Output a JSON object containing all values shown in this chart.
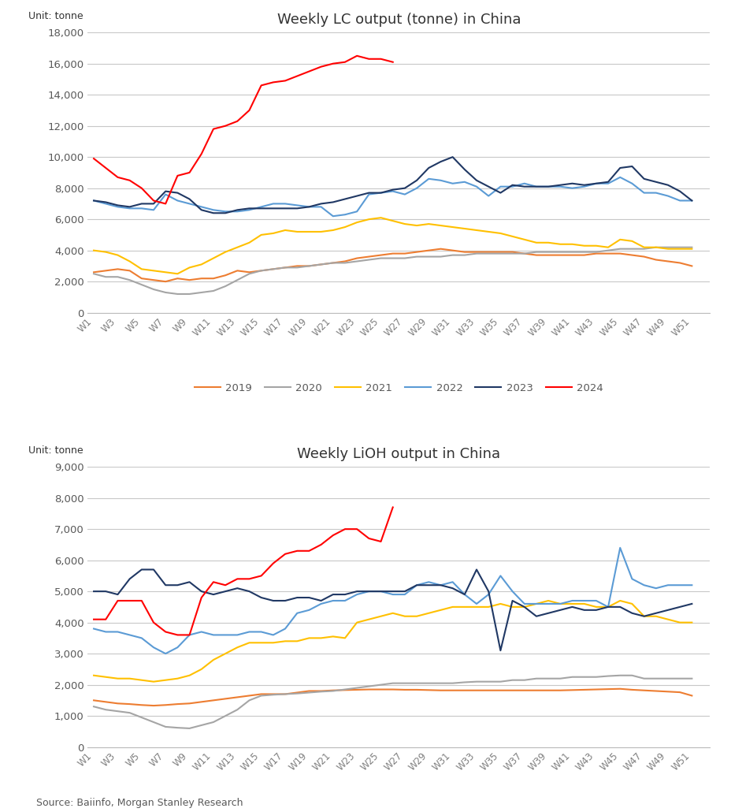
{
  "lc": {
    "title": "Weekly LC output (tonne) in China",
    "ylabel": "Unit: tonne",
    "ylim": [
      0,
      18000
    ],
    "yticks": [
      0,
      2000,
      4000,
      6000,
      8000,
      10000,
      12000,
      14000,
      16000,
      18000
    ],
    "series": {
      "2019": [
        2600,
        2700,
        2800,
        2700,
        2200,
        2100,
        2000,
        2200,
        2100,
        2200,
        2200,
        2400,
        2700,
        2600,
        2700,
        2800,
        2900,
        3000,
        3000,
        3100,
        3200,
        3300,
        3500,
        3600,
        3700,
        3800,
        3800,
        3900,
        4000,
        4100,
        4000,
        3900,
        3900,
        3900,
        3900,
        3900,
        3800,
        3700,
        3700,
        3700,
        3700,
        3700,
        3800,
        3800,
        3800,
        3700,
        3600,
        3400,
        3300,
        3200,
        3000,
        null
      ],
      "2020": [
        2500,
        2300,
        2300,
        2100,
        1800,
        1500,
        1300,
        1200,
        1200,
        1300,
        1400,
        1700,
        2100,
        2500,
        2700,
        2800,
        2900,
        2900,
        3000,
        3100,
        3200,
        3200,
        3300,
        3400,
        3500,
        3500,
        3500,
        3600,
        3600,
        3600,
        3700,
        3700,
        3800,
        3800,
        3800,
        3800,
        3800,
        3900,
        3900,
        3900,
        3900,
        3900,
        3900,
        4000,
        4100,
        4100,
        4100,
        4200,
        4200,
        4200,
        4200,
        null
      ],
      "2021": [
        4000,
        3900,
        3700,
        3300,
        2800,
        2700,
        2600,
        2500,
        2900,
        3100,
        3500,
        3900,
        4200,
        4500,
        5000,
        5100,
        5300,
        5200,
        5200,
        5200,
        5300,
        5500,
        5800,
        6000,
        6100,
        5900,
        5700,
        5600,
        5700,
        5600,
        5500,
        5400,
        5300,
        5200,
        5100,
        4900,
        4700,
        4500,
        4500,
        4400,
        4400,
        4300,
        4300,
        4200,
        4700,
        4600,
        4200,
        4200,
        4100,
        4100,
        4100,
        null
      ],
      "2022": [
        7200,
        7000,
        6800,
        6700,
        6700,
        6600,
        7600,
        7200,
        7000,
        6800,
        6600,
        6500,
        6500,
        6600,
        6800,
        7000,
        7000,
        6900,
        6800,
        6800,
        6200,
        6300,
        6500,
        7600,
        7700,
        7800,
        7600,
        8000,
        8600,
        8500,
        8300,
        8400,
        8100,
        7500,
        8100,
        8100,
        8300,
        8100,
        8100,
        8100,
        8000,
        8100,
        8300,
        8300,
        8700,
        8300,
        7700,
        7700,
        7500,
        7200,
        7200,
        null
      ],
      "2023": [
        7200,
        7100,
        6900,
        6800,
        7000,
        7000,
        7800,
        7700,
        7300,
        6600,
        6400,
        6400,
        6600,
        6700,
        6700,
        6700,
        6700,
        6700,
        6800,
        7000,
        7100,
        7300,
        7500,
        7700,
        7700,
        7900,
        8000,
        8500,
        9300,
        9700,
        10000,
        9200,
        8500,
        8100,
        7700,
        8200,
        8100,
        8100,
        8100,
        8200,
        8300,
        8200,
        8300,
        8400,
        9300,
        9400,
        8600,
        8400,
        8200,
        7800,
        7200,
        null
      ],
      "2024": [
        9900,
        9300,
        8700,
        8500,
        8000,
        7200,
        7000,
        8800,
        9000,
        10200,
        11800,
        12000,
        12300,
        13000,
        14600,
        14800,
        14900,
        15200,
        15500,
        15800,
        16000,
        16100,
        16500,
        16300,
        16300,
        16100,
        null,
        null,
        null,
        null,
        null,
        null,
        null,
        null,
        null,
        null,
        null,
        null,
        null,
        null,
        null,
        null,
        null,
        null,
        null,
        null,
        null,
        null,
        null,
        null,
        null,
        null
      ]
    },
    "colors": {
      "2019": "#ED7D31",
      "2020": "#A5A5A5",
      "2021": "#FFC000",
      "2022": "#5B9BD5",
      "2023": "#203864",
      "2024": "#FF0000"
    }
  },
  "lioh": {
    "title": "Weekly LiOH output in China",
    "ylabel": "Unit: tonne",
    "ylim": [
      0,
      9000
    ],
    "yticks": [
      0,
      1000,
      2000,
      3000,
      4000,
      5000,
      6000,
      7000,
      8000,
      9000
    ],
    "series": {
      "2019": [
        1500,
        1450,
        1400,
        1380,
        1350,
        1330,
        1350,
        1380,
        1400,
        1450,
        1500,
        1550,
        1600,
        1650,
        1700,
        1700,
        1700,
        1750,
        1800,
        1800,
        1820,
        1830,
        1840,
        1850,
        1850,
        1850,
        1840,
        1840,
        1830,
        1820,
        1820,
        1820,
        1820,
        1820,
        1820,
        1820,
        1820,
        1820,
        1820,
        1820,
        1830,
        1840,
        1850,
        1860,
        1870,
        1840,
        1820,
        1800,
        1780,
        1760,
        1650,
        null
      ],
      "2020": [
        1300,
        1200,
        1150,
        1100,
        950,
        800,
        650,
        620,
        600,
        700,
        800,
        1000,
        1200,
        1500,
        1650,
        1680,
        1700,
        1720,
        1750,
        1780,
        1800,
        1850,
        1900,
        1950,
        2000,
        2050,
        2050,
        2050,
        2050,
        2050,
        2050,
        2080,
        2100,
        2100,
        2100,
        2150,
        2150,
        2200,
        2200,
        2200,
        2250,
        2250,
        2250,
        2280,
        2300,
        2300,
        2200,
        2200,
        2200,
        2200,
        2200,
        null
      ],
      "2021": [
        2300,
        2250,
        2200,
        2200,
        2150,
        2100,
        2150,
        2200,
        2300,
        2500,
        2800,
        3000,
        3200,
        3350,
        3350,
        3350,
        3400,
        3400,
        3500,
        3500,
        3550,
        3500,
        4000,
        4100,
        4200,
        4300,
        4200,
        4200,
        4300,
        4400,
        4500,
        4500,
        4500,
        4500,
        4600,
        4500,
        4500,
        4600,
        4700,
        4600,
        4600,
        4600,
        4500,
        4500,
        4700,
        4600,
        4200,
        4200,
        4100,
        4000,
        4000,
        null
      ],
      "2022": [
        3800,
        3700,
        3700,
        3600,
        3500,
        3200,
        3000,
        3200,
        3600,
        3700,
        3600,
        3600,
        3600,
        3700,
        3700,
        3600,
        3800,
        4300,
        4400,
        4600,
        4700,
        4700,
        4900,
        5000,
        5000,
        4900,
        4900,
        5200,
        5300,
        5200,
        5300,
        4900,
        4600,
        4900,
        5500,
        5000,
        4600,
        4600,
        4600,
        4600,
        4700,
        4700,
        4700,
        4500,
        6400,
        5400,
        5200,
        5100,
        5200,
        5200,
        5200,
        null
      ],
      "2023": [
        5000,
        5000,
        4900,
        5400,
        5700,
        5700,
        5200,
        5200,
        5300,
        5000,
        4900,
        5000,
        5100,
        5000,
        4800,
        4700,
        4700,
        4800,
        4800,
        4700,
        4900,
        4900,
        5000,
        5000,
        5000,
        5000,
        5000,
        5200,
        5200,
        5200,
        5100,
        4900,
        5700,
        5000,
        3100,
        4700,
        4500,
        4200,
        4300,
        4400,
        4500,
        4400,
        4400,
        4500,
        4500,
        4300,
        4200,
        4300,
        4400,
        4500,
        4600,
        null
      ],
      "2024": [
        4100,
        4100,
        4700,
        4700,
        4700,
        4000,
        3700,
        3600,
        3600,
        4800,
        5300,
        5200,
        5400,
        5400,
        5500,
        5900,
        6200,
        6300,
        6300,
        6500,
        6800,
        7000,
        7000,
        6700,
        6600,
        7700,
        null,
        null,
        null,
        null,
        null,
        null,
        null,
        null,
        null,
        null,
        null,
        null,
        null,
        null,
        null,
        null,
        null,
        null,
        null,
        null,
        null,
        null,
        null,
        null,
        null,
        null
      ]
    },
    "colors": {
      "2019": "#ED7D31",
      "2020": "#A5A5A5",
      "2021": "#FFC000",
      "2022": "#5B9BD5",
      "2023": "#203864",
      "2024": "#FF0000"
    }
  },
  "source_text": "Source: Baiinfo, Morgan Stanley Research",
  "legend_order": [
    "2019",
    "2020",
    "2021",
    "2022",
    "2023",
    "2024"
  ],
  "background_color": "#FFFFFF",
  "grid_color": "#C8C8C8",
  "tick_label_color": "#7F7F7F",
  "ytick_color": "#595959"
}
